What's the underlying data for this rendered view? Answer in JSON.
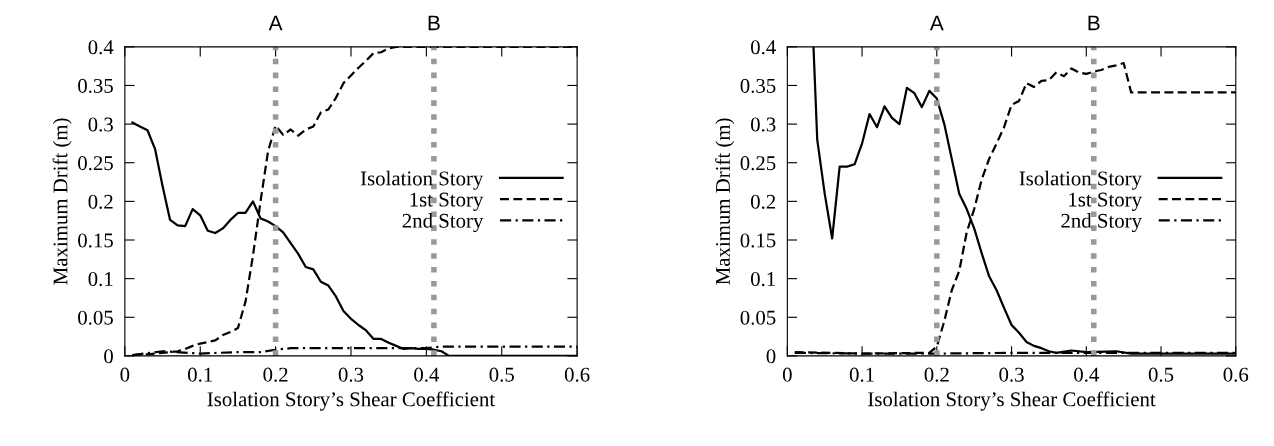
{
  "chart_data": [
    {
      "type": "line",
      "xlabel": "Isolation Story’s Shear Coefficient",
      "ylabel": "Maximum Drift (m)",
      "xlim": [
        0,
        0.6
      ],
      "ylim": [
        0,
        0.4
      ],
      "xticks": [
        0,
        0.1,
        0.2,
        0.3,
        0.4,
        0.5,
        0.6
      ],
      "yticks": [
        0,
        0.05,
        0.1,
        0.15,
        0.2,
        0.25,
        0.3,
        0.35,
        0.4
      ],
      "grid": false,
      "legend": "right",
      "ref_lines": [
        {
          "axis": "x",
          "value": 0.2,
          "label": "A",
          "color": "#999999",
          "line_style": "dotted"
        },
        {
          "axis": "x",
          "value": 0.41,
          "label": "B",
          "color": "#999999",
          "line_style": "dotted"
        }
      ],
      "series": [
        {
          "name": "Isolation Story",
          "color": "#000000",
          "line_style": "solid",
          "x": [
            0.01,
            0.02,
            0.03,
            0.04,
            0.05,
            0.06,
            0.07,
            0.08,
            0.09,
            0.1,
            0.11,
            0.12,
            0.13,
            0.14,
            0.15,
            0.16,
            0.17,
            0.18,
            0.19,
            0.2,
            0.21,
            0.22,
            0.23,
            0.24,
            0.25,
            0.26,
            0.27,
            0.28,
            0.29,
            0.3,
            0.31,
            0.32,
            0.33,
            0.34,
            0.35,
            0.36,
            0.37,
            0.38,
            0.39,
            0.4,
            0.41,
            0.42,
            0.43,
            0.6
          ],
          "values": [
            0.302,
            0.297,
            0.292,
            0.268,
            0.22,
            0.176,
            0.169,
            0.168,
            0.19,
            0.182,
            0.162,
            0.159,
            0.165,
            0.176,
            0.185,
            0.185,
            0.2,
            0.178,
            0.174,
            0.168,
            0.16,
            0.146,
            0.132,
            0.115,
            0.112,
            0.096,
            0.091,
            0.077,
            0.058,
            0.048,
            0.04,
            0.033,
            0.022,
            0.022,
            0.017,
            0.013,
            0.009,
            0.01,
            0.009,
            0.009,
            0.008,
            0.006,
            0,
            0
          ]
        },
        {
          "name": "1st Story",
          "color": "#000000",
          "line_style": "dashed",
          "x": [
            0.01,
            0.03,
            0.05,
            0.07,
            0.08,
            0.09,
            0.1,
            0.11,
            0.12,
            0.13,
            0.14,
            0.15,
            0.16,
            0.17,
            0.18,
            0.19,
            0.2,
            0.21,
            0.22,
            0.23,
            0.24,
            0.25,
            0.26,
            0.27,
            0.28,
            0.29,
            0.3,
            0.31,
            0.32,
            0.33,
            0.34,
            0.35,
            0.36,
            0.6
          ],
          "values": [
            0.001,
            0.002,
            0.004,
            0.006,
            0.009,
            0.013,
            0.016,
            0.018,
            0.02,
            0.027,
            0.031,
            0.036,
            0.07,
            0.13,
            0.2,
            0.265,
            0.298,
            0.286,
            0.293,
            0.285,
            0.293,
            0.297,
            0.315,
            0.319,
            0.334,
            0.353,
            0.363,
            0.373,
            0.382,
            0.392,
            0.393,
            0.398,
            0.4,
            0.4
          ]
        },
        {
          "name": "2nd Story",
          "color": "#000000",
          "line_style": "dashdot",
          "x": [
            0.01,
            0.05,
            0.1,
            0.15,
            0.18,
            0.2,
            0.22,
            0.3,
            0.4,
            0.42,
            0.6
          ],
          "values": [
            0.001,
            0.006,
            0.003,
            0.005,
            0.005,
            0.008,
            0.01,
            0.01,
            0.01,
            0.012,
            0.012
          ]
        }
      ]
    },
    {
      "type": "line",
      "xlabel": "Isolation Story’s Shear Coefficient",
      "ylabel": "Maximum Drift (m)",
      "xlim": [
        0,
        0.6
      ],
      "ylim": [
        0,
        0.4
      ],
      "xticks": [
        0,
        0.1,
        0.2,
        0.3,
        0.4,
        0.5,
        0.6
      ],
      "yticks": [
        0,
        0.05,
        0.1,
        0.15,
        0.2,
        0.25,
        0.3,
        0.35,
        0.4
      ],
      "grid": false,
      "legend": "right",
      "ref_lines": [
        {
          "axis": "x",
          "value": 0.2,
          "label": "A",
          "color": "#999999",
          "line_style": "dotted"
        },
        {
          "axis": "x",
          "value": 0.41,
          "label": "B",
          "color": "#999999",
          "line_style": "dotted"
        }
      ],
      "series": [
        {
          "name": "Isolation Story",
          "color": "#000000",
          "line_style": "solid",
          "x": [
            0.035,
            0.04,
            0.05,
            0.06,
            0.07,
            0.08,
            0.09,
            0.1,
            0.11,
            0.12,
            0.13,
            0.14,
            0.15,
            0.16,
            0.17,
            0.18,
            0.19,
            0.2,
            0.21,
            0.22,
            0.23,
            0.24,
            0.25,
            0.26,
            0.27,
            0.28,
            0.29,
            0.3,
            0.31,
            0.32,
            0.33,
            0.34,
            0.35,
            0.36,
            0.38,
            0.4,
            0.44,
            0.46,
            0.6
          ],
          "values": [
            0.4,
            0.28,
            0.21,
            0.152,
            0.245,
            0.245,
            0.248,
            0.275,
            0.313,
            0.296,
            0.323,
            0.308,
            0.3,
            0.347,
            0.34,
            0.322,
            0.343,
            0.333,
            0.3,
            0.255,
            0.21,
            0.19,
            0.165,
            0.133,
            0.103,
            0.085,
            0.062,
            0.04,
            0.03,
            0.018,
            0.013,
            0.01,
            0.006,
            0.004,
            0.007,
            0.005,
            0.006,
            0.003,
            0.003
          ]
        },
        {
          "name": "1st Story",
          "color": "#000000",
          "line_style": "dashed",
          "x": [
            0.01,
            0.1,
            0.19,
            0.2,
            0.21,
            0.22,
            0.23,
            0.24,
            0.25,
            0.26,
            0.27,
            0.28,
            0.29,
            0.3,
            0.31,
            0.32,
            0.33,
            0.34,
            0.35,
            0.36,
            0.37,
            0.38,
            0.39,
            0.4,
            0.41,
            0.42,
            0.43,
            0.44,
            0.45,
            0.46,
            0.6
          ],
          "values": [
            0.005,
            0.003,
            0.004,
            0.012,
            0.045,
            0.085,
            0.11,
            0.16,
            0.19,
            0.228,
            0.255,
            0.275,
            0.296,
            0.325,
            0.33,
            0.353,
            0.348,
            0.356,
            0.357,
            0.367,
            0.362,
            0.372,
            0.367,
            0.365,
            0.368,
            0.37,
            0.374,
            0.376,
            0.379,
            0.341,
            0.341
          ]
        },
        {
          "name": "2nd Story",
          "color": "#000000",
          "line_style": "dashdot",
          "x": [
            0.01,
            0.1,
            0.2,
            0.3,
            0.4,
            0.6
          ],
          "values": [
            0.004,
            0.003,
            0.003,
            0.004,
            0.004,
            0.004
          ]
        }
      ]
    }
  ]
}
